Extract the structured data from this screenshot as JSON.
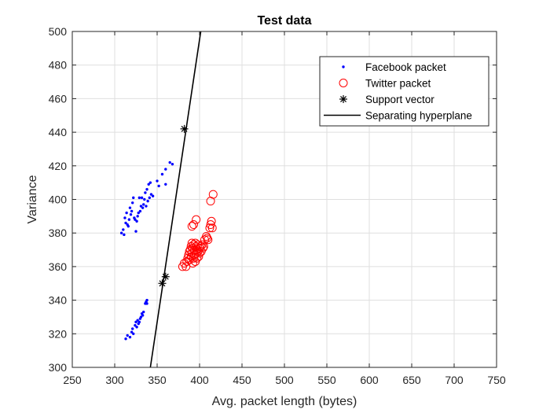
{
  "chart_data": {
    "type": "scatter",
    "title": "Test data",
    "xlabel": "Avg. packet length (bytes)",
    "ylabel": "Variance",
    "xlim": [
      250,
      750
    ],
    "ylim": [
      300,
      500
    ],
    "xticks": [
      250,
      300,
      350,
      400,
      450,
      500,
      550,
      600,
      650,
      700,
      750
    ],
    "yticks": [
      300,
      320,
      340,
      360,
      380,
      400,
      420,
      440,
      460,
      480,
      500
    ],
    "grid": true,
    "legend_position": "top-right",
    "series": [
      {
        "name": "Facebook packet",
        "marker": "dot",
        "color": "#0000ff",
        "points": [
          [
            308,
            380
          ],
          [
            310,
            382
          ],
          [
            311,
            379
          ],
          [
            312,
            389
          ],
          [
            313,
            386
          ],
          [
            314,
            392
          ],
          [
            315,
            385
          ],
          [
            316,
            384
          ],
          [
            317,
            388
          ],
          [
            318,
            395
          ],
          [
            319,
            391
          ],
          [
            320,
            393
          ],
          [
            321,
            398
          ],
          [
            322,
            401
          ],
          [
            323,
            389
          ],
          [
            324,
            388
          ],
          [
            325,
            381
          ],
          [
            326,
            387
          ],
          [
            327,
            390
          ],
          [
            328,
            392
          ],
          [
            329,
            401
          ],
          [
            330,
            393
          ],
          [
            331,
            396
          ],
          [
            332,
            401
          ],
          [
            333,
            395
          ],
          [
            334,
            397
          ],
          [
            335,
            400
          ],
          [
            336,
            404
          ],
          [
            337,
            396
          ],
          [
            338,
            406
          ],
          [
            339,
            399
          ],
          [
            340,
            409
          ],
          [
            341,
            401
          ],
          [
            342,
            410
          ],
          [
            343,
            403
          ],
          [
            345,
            402
          ],
          [
            350,
            411
          ],
          [
            352,
            408
          ],
          [
            356,
            415
          ],
          [
            360,
            418
          ],
          [
            360,
            409
          ],
          [
            365,
            422
          ],
          [
            368,
            421
          ],
          [
            313,
            317
          ],
          [
            315,
            319
          ],
          [
            318,
            318
          ],
          [
            320,
            321
          ],
          [
            321,
            323
          ],
          [
            322,
            320
          ],
          [
            324,
            325
          ],
          [
            325,
            327
          ],
          [
            326,
            324
          ],
          [
            327,
            328
          ],
          [
            328,
            326
          ],
          [
            329,
            327
          ],
          [
            330,
            329
          ],
          [
            331,
            330
          ],
          [
            332,
            332
          ],
          [
            333,
            331
          ],
          [
            334,
            333
          ],
          [
            336,
            338
          ],
          [
            337,
            339
          ],
          [
            338,
            338
          ],
          [
            338,
            340
          ]
        ]
      },
      {
        "name": "Twitter packet",
        "marker": "circle",
        "color": "#ff0000",
        "points": [
          [
            380,
            360
          ],
          [
            382,
            362
          ],
          [
            384,
            360
          ],
          [
            385,
            363
          ],
          [
            386,
            365
          ],
          [
            387,
            367
          ],
          [
            388,
            369
          ],
          [
            388,
            364
          ],
          [
            389,
            370
          ],
          [
            390,
            366
          ],
          [
            390,
            372
          ],
          [
            391,
            368
          ],
          [
            391,
            374
          ],
          [
            392,
            362
          ],
          [
            392,
            371
          ],
          [
            393,
            365
          ],
          [
            393,
            373
          ],
          [
            394,
            367
          ],
          [
            394,
            370
          ],
          [
            395,
            374
          ],
          [
            395,
            363
          ],
          [
            396,
            368
          ],
          [
            396,
            372
          ],
          [
            397,
            365
          ],
          [
            397,
            370
          ],
          [
            398,
            373
          ],
          [
            398,
            369
          ],
          [
            399,
            366
          ],
          [
            400,
            371
          ],
          [
            400,
            368
          ],
          [
            401,
            372
          ],
          [
            402,
            369
          ],
          [
            403,
            373
          ],
          [
            404,
            371
          ],
          [
            405,
            372
          ],
          [
            406,
            376
          ],
          [
            408,
            378
          ],
          [
            409,
            377
          ],
          [
            410,
            376
          ],
          [
            391,
            384
          ],
          [
            393,
            385
          ],
          [
            396,
            388
          ],
          [
            412,
            383
          ],
          [
            413,
            385
          ],
          [
            414,
            387
          ],
          [
            415,
            383
          ],
          [
            413,
            399
          ],
          [
            416,
            403
          ]
        ]
      },
      {
        "name": "Support vector",
        "marker": "star",
        "color": "#000000",
        "points": [
          [
            382,
            442
          ],
          [
            356,
            350
          ],
          [
            360,
            354
          ]
        ]
      },
      {
        "name": "Separating hyperplane",
        "marker": "line",
        "color": "#000000",
        "points": [
          [
            342,
            300
          ],
          [
            402,
            502
          ]
        ]
      }
    ]
  }
}
